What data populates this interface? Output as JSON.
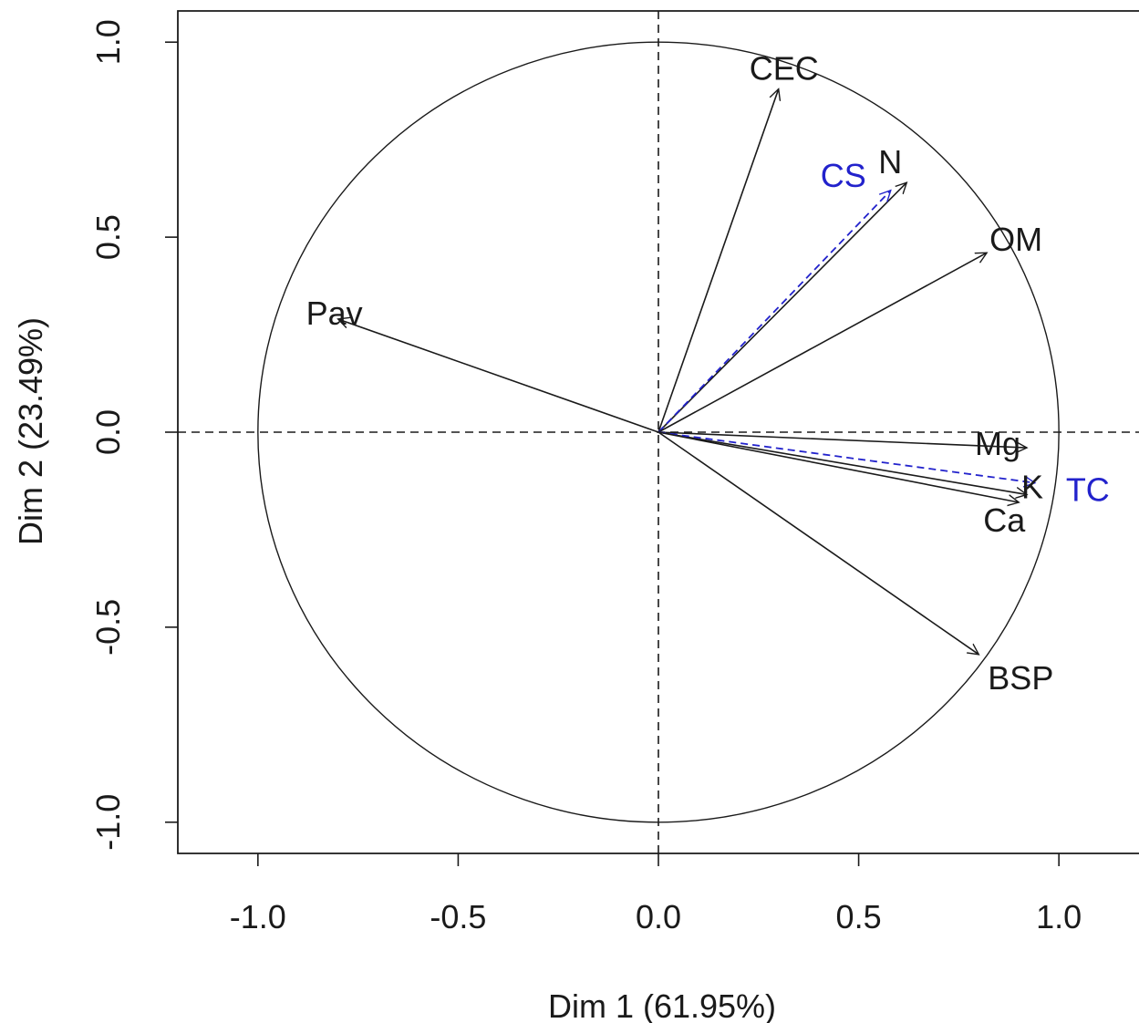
{
  "chart_data": {
    "type": "scatter",
    "subtype": "pca-correlation-circle",
    "xlabel": "Dim 1 (61.95%)",
    "ylabel": "Dim 2 (23.49%)",
    "xlim": [
      -1.2,
      1.2
    ],
    "ylim": [
      -1.08,
      1.08
    ],
    "xticks": [
      "-1.0",
      "-0.5",
      "0.0",
      "0.5",
      "1.0"
    ],
    "yticks": [
      "-1.0",
      "-0.5",
      "0.0",
      "0.5",
      "1.0"
    ],
    "xtick_values": [
      -1.0,
      -0.5,
      0.0,
      0.5,
      1.0
    ],
    "ytick_values": [
      -1.0,
      -0.5,
      0.0,
      0.5,
      1.0
    ],
    "unit_circle": true,
    "grid": false,
    "active_color": "#1a1a1a",
    "supplementary_color": "#2222cc",
    "variables": [
      {
        "name": "CEC",
        "x": 0.3,
        "y": 0.88,
        "supplementary": false
      },
      {
        "name": "N",
        "x": 0.62,
        "y": 0.64,
        "supplementary": false
      },
      {
        "name": "CS",
        "x": 0.58,
        "y": 0.62,
        "supplementary": true
      },
      {
        "name": "OM",
        "x": 0.82,
        "y": 0.46,
        "supplementary": false
      },
      {
        "name": "Pav",
        "x": -0.8,
        "y": 0.29,
        "supplementary": false
      },
      {
        "name": "Mg",
        "x": 0.92,
        "y": -0.04,
        "supplementary": false
      },
      {
        "name": "K",
        "x": 0.92,
        "y": -0.16,
        "supplementary": false
      },
      {
        "name": "TC",
        "x": 0.94,
        "y": -0.13,
        "supplementary": true
      },
      {
        "name": "Ca",
        "x": 0.9,
        "y": -0.18,
        "supplementary": false
      },
      {
        "name": "BSP",
        "x": 0.8,
        "y": -0.57,
        "supplementary": false
      }
    ]
  }
}
